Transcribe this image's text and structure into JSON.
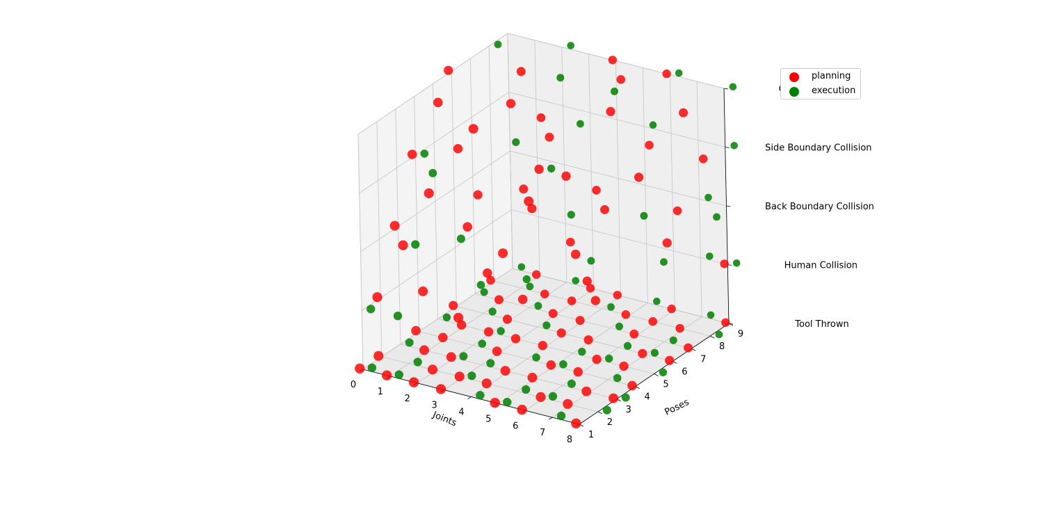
{
  "chart_data": {
    "type": "scatter",
    "title": "",
    "xlabel": "Joints",
    "ylabel": "Poses",
    "zlabel": "",
    "x_ticks": [
      "0",
      "1",
      "2",
      "3",
      "4",
      "5",
      "6",
      "7",
      "8"
    ],
    "y_ticks": [
      "1",
      "2",
      "3",
      "4",
      "5",
      "6",
      "7",
      "8",
      "9"
    ],
    "z_ticks": [
      "Tool Thrown",
      "Human Collision",
      "Back Boundary Collision",
      "Side Boundary Collision",
      "Controller Failure"
    ],
    "xlim": [
      0,
      8
    ],
    "ylim": [
      1,
      9
    ],
    "zlim": [
      0,
      4
    ],
    "grid": true,
    "legend_position": "top-right",
    "series": [
      {
        "name": "planning",
        "color": "#ff0000",
        "points": [
          [
            0,
            1,
            0
          ],
          [
            1,
            1,
            0
          ],
          [
            2,
            1,
            0
          ],
          [
            3,
            1,
            0
          ],
          [
            5,
            1,
            0
          ],
          [
            6,
            1,
            0
          ],
          [
            8,
            1,
            0
          ],
          [
            0,
            2,
            0
          ],
          [
            2,
            2,
            0
          ],
          [
            3,
            2,
            0
          ],
          [
            4,
            2,
            0
          ],
          [
            6,
            2,
            0
          ],
          [
            7,
            2,
            0
          ],
          [
            1,
            3,
            0
          ],
          [
            2,
            3,
            0
          ],
          [
            4,
            3,
            0
          ],
          [
            5,
            3,
            0
          ],
          [
            7,
            3,
            0
          ],
          [
            8,
            3,
            0
          ],
          [
            0,
            4,
            0
          ],
          [
            1,
            4,
            0
          ],
          [
            3,
            4,
            0
          ],
          [
            5,
            4,
            0
          ],
          [
            6,
            4,
            0
          ],
          [
            8,
            4,
            0
          ],
          [
            1,
            5,
            0
          ],
          [
            2,
            5,
            0
          ],
          [
            3,
            5,
            0
          ],
          [
            4,
            5,
            0
          ],
          [
            6,
            5,
            0
          ],
          [
            7,
            5,
            0
          ],
          [
            0,
            6,
            0
          ],
          [
            2,
            6,
            0
          ],
          [
            4,
            6,
            0
          ],
          [
            5,
            6,
            0
          ],
          [
            7,
            6,
            0
          ],
          [
            8,
            6,
            0
          ],
          [
            1,
            7,
            0
          ],
          [
            3,
            7,
            0
          ],
          [
            4,
            7,
            0
          ],
          [
            6,
            7,
            0
          ],
          [
            8,
            7,
            0
          ],
          [
            0,
            8,
            0
          ],
          [
            2,
            8,
            0
          ],
          [
            3,
            8,
            0
          ],
          [
            5,
            8,
            0
          ],
          [
            6,
            8,
            0
          ],
          [
            7,
            8,
            0
          ],
          [
            1,
            9,
            0
          ],
          [
            3,
            9,
            0
          ],
          [
            4,
            9,
            0
          ],
          [
            6,
            9,
            0
          ],
          [
            8,
            9,
            0
          ],
          [
            0,
            2,
            1
          ],
          [
            1,
            3,
            1
          ],
          [
            3,
            2,
            1
          ],
          [
            2,
            5,
            1
          ],
          [
            4,
            4,
            1
          ],
          [
            5,
            6,
            1
          ],
          [
            6,
            5,
            1
          ],
          [
            3,
            8,
            1
          ],
          [
            8,
            9,
            1
          ],
          [
            0,
            3,
            2
          ],
          [
            1,
            2,
            2
          ],
          [
            2,
            4,
            2
          ],
          [
            3,
            6,
            2
          ],
          [
            4,
            3,
            2
          ],
          [
            5,
            7,
            2
          ],
          [
            6,
            4,
            2
          ],
          [
            7,
            8,
            2
          ],
          [
            2,
            7,
            2
          ],
          [
            8,
            6,
            2
          ],
          [
            4,
            8,
            2
          ],
          [
            1,
            6,
            2
          ],
          [
            0,
            4,
            3
          ],
          [
            1,
            5,
            3
          ],
          [
            2,
            2,
            3
          ],
          [
            3,
            7,
            3
          ],
          [
            4,
            5,
            3
          ],
          [
            5,
            3,
            3
          ],
          [
            6,
            8,
            3
          ],
          [
            7,
            6,
            3
          ],
          [
            2,
            8,
            3
          ],
          [
            8,
            8,
            3
          ],
          [
            5,
            5,
            3
          ],
          [
            0,
            6,
            4
          ],
          [
            1,
            4,
            4
          ],
          [
            2,
            7,
            4
          ],
          [
            3,
            5,
            4
          ],
          [
            4,
            9,
            4
          ],
          [
            5,
            8,
            4
          ],
          [
            6,
            6,
            4
          ],
          [
            8,
            7,
            4
          ],
          [
            3,
            3,
            4
          ],
          [
            6,
            9,
            4
          ]
        ]
      },
      {
        "name": "execution",
        "color": "#008000",
        "points": [
          [
            0,
            1,
            0
          ],
          [
            1,
            1,
            0
          ],
          [
            4,
            1,
            0
          ],
          [
            5,
            1,
            0
          ],
          [
            7,
            1,
            0
          ],
          [
            1,
            2,
            0
          ],
          [
            3,
            2,
            0
          ],
          [
            5,
            2,
            0
          ],
          [
            6,
            2,
            0
          ],
          [
            8,
            2,
            0
          ],
          [
            0,
            3,
            0
          ],
          [
            2,
            3,
            0
          ],
          [
            3,
            3,
            0
          ],
          [
            6,
            3,
            0
          ],
          [
            8,
            3,
            0
          ],
          [
            2,
            4,
            0
          ],
          [
            4,
            4,
            0
          ],
          [
            5,
            4,
            0
          ],
          [
            7,
            4,
            0
          ],
          [
            0,
            5,
            0
          ],
          [
            2,
            5,
            0
          ],
          [
            5,
            5,
            0
          ],
          [
            6,
            5,
            0
          ],
          [
            8,
            5,
            0
          ],
          [
            1,
            6,
            0
          ],
          [
            3,
            6,
            0
          ],
          [
            6,
            6,
            0
          ],
          [
            7,
            6,
            0
          ],
          [
            0,
            7,
            0
          ],
          [
            2,
            7,
            0
          ],
          [
            5,
            7,
            0
          ],
          [
            7,
            7,
            0
          ],
          [
            1,
            8,
            0
          ],
          [
            4,
            8,
            0
          ],
          [
            8,
            8,
            0
          ],
          [
            0,
            9,
            0
          ],
          [
            2,
            9,
            0
          ],
          [
            5,
            9,
            0
          ],
          [
            7,
            9,
            0
          ],
          [
            0,
            1,
            1
          ],
          [
            1,
            1,
            1
          ],
          [
            2,
            4,
            1
          ],
          [
            4,
            7,
            1
          ],
          [
            6,
            8,
            1
          ],
          [
            7,
            9,
            1
          ],
          [
            8,
            9,
            1
          ],
          [
            3,
            5,
            1
          ],
          [
            1,
            2,
            2
          ],
          [
            2,
            3,
            2
          ],
          [
            4,
            6,
            2
          ],
          [
            6,
            7,
            2
          ],
          [
            7,
            9,
            2
          ],
          [
            8,
            8,
            2
          ],
          [
            0,
            4,
            3
          ],
          [
            1,
            3,
            3
          ],
          [
            2,
            6,
            3
          ],
          [
            3,
            8,
            3
          ],
          [
            5,
            9,
            3
          ],
          [
            8,
            9,
            3
          ],
          [
            4,
            5,
            3
          ],
          [
            0,
            8,
            4
          ],
          [
            2,
            9,
            4
          ],
          [
            3,
            7,
            4
          ],
          [
            5,
            7,
            4
          ],
          [
            6,
            9,
            4
          ],
          [
            8,
            9,
            4
          ]
        ]
      }
    ]
  }
}
